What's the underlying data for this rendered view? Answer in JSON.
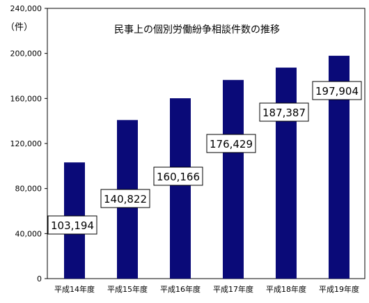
{
  "chart_data": {
    "type": "bar",
    "title": "民事上の個別労働紛争相談件数の推移",
    "ylabel": "（件）",
    "xlabel": "",
    "categories": [
      "平成14年度",
      "平成15年度",
      "平成16年度",
      "平成17年度",
      "平成18年度",
      "平成19年度"
    ],
    "values": [
      103194,
      140822,
      160166,
      176429,
      187387,
      197904
    ],
    "value_labels": [
      "103,194",
      "140,822",
      "160,166",
      "176,429",
      "187,387",
      "197,904"
    ],
    "ylim": [
      0,
      240000
    ],
    "yticks": [
      0,
      40000,
      80000,
      120000,
      160000,
      200000,
      240000
    ],
    "ytick_labels": [
      "0",
      "40,000",
      "80,000",
      "120,000",
      "160,000",
      "200,000",
      "240,000"
    ],
    "grid": false,
    "bar_color": "#0a0a78"
  }
}
